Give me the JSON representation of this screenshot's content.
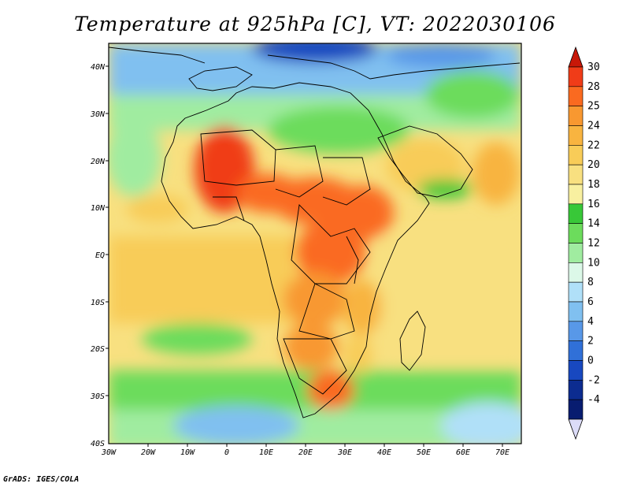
{
  "title": "Temperature at 925hPa [C], VT: 2022030106",
  "credit": "GrADS: IGES/COLA",
  "map": {
    "region": "Africa",
    "variable": "Temperature at 925hPa",
    "units": "C",
    "lon_range": [
      -30,
      75
    ],
    "lat_range": [
      -40,
      45
    ],
    "lat_labels": [
      "40N",
      "30N",
      "20N",
      "10N",
      "EQ",
      "10S",
      "20S",
      "30S",
      "40S"
    ],
    "lon_labels": [
      "30W",
      "20W",
      "10W",
      "0",
      "10E",
      "20E",
      "30E",
      "40E",
      "50E",
      "60E",
      "70E"
    ]
  },
  "colorbar": {
    "labels": [
      "30",
      "28",
      "25",
      "24",
      "22",
      "20",
      "18",
      "16",
      "14",
      "12",
      "10",
      "8",
      "6",
      "4",
      "2",
      "0",
      "-2",
      "-4"
    ],
    "colors": [
      "#f03c18",
      "#fa6a20",
      "#f89830",
      "#f8b440",
      "#f8cc58",
      "#f8e080",
      "#f8f0a0",
      "#38c838",
      "#6cdc5c",
      "#a0eca0",
      "#dcf8e8",
      "#b0e0f8",
      "#80c0f0",
      "#5898e8",
      "#3070d8",
      "#1848c0",
      "#0c2c90",
      "#081c70"
    ],
    "top_color": "#c81808",
    "bottom_color": "#dcdcf8"
  }
}
